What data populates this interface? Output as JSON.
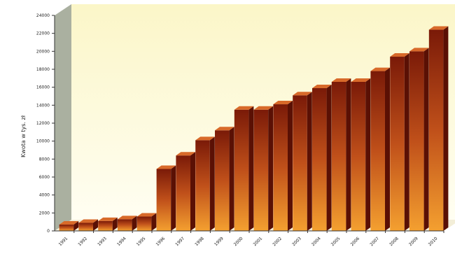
{
  "chart_data": {
    "type": "bar",
    "title": "",
    "xlabel": "",
    "ylabel": "Kwota w tys. zł",
    "ylim": [
      0,
      24000
    ],
    "yticks": [
      "0",
      "2000",
      "4000",
      "6000",
      "8000",
      "10000",
      "12000",
      "14000",
      "16000",
      "18000",
      "20000",
      "22000",
      "24000"
    ],
    "categories": [
      "1991",
      "1992",
      "1993",
      "1994",
      "1995",
      "1996",
      "1997",
      "1998",
      "1999",
      "2000",
      "2001",
      "2002",
      "2003",
      "2004",
      "2005",
      "2006",
      "2007",
      "2008",
      "2009",
      "2010"
    ],
    "values": [
      700,
      900,
      1100,
      1300,
      1600,
      6900,
      8400,
      10100,
      11200,
      13500,
      13500,
      14100,
      15100,
      15900,
      16600,
      16600,
      17800,
      19400,
      20000,
      22400
    ],
    "grid": false,
    "legend": "none",
    "colors": {
      "bar_top": "#7a1a08",
      "bar_mid": "#c0501a",
      "bar_bottom": "#f4a030",
      "bar_side": "#5a1004",
      "bar_cap": "#d86a2a",
      "backwall_top": "#fbf6c8",
      "backwall_bottom": "#fffef2",
      "sidewall": "#aab0a0",
      "axis": "#333333"
    }
  }
}
